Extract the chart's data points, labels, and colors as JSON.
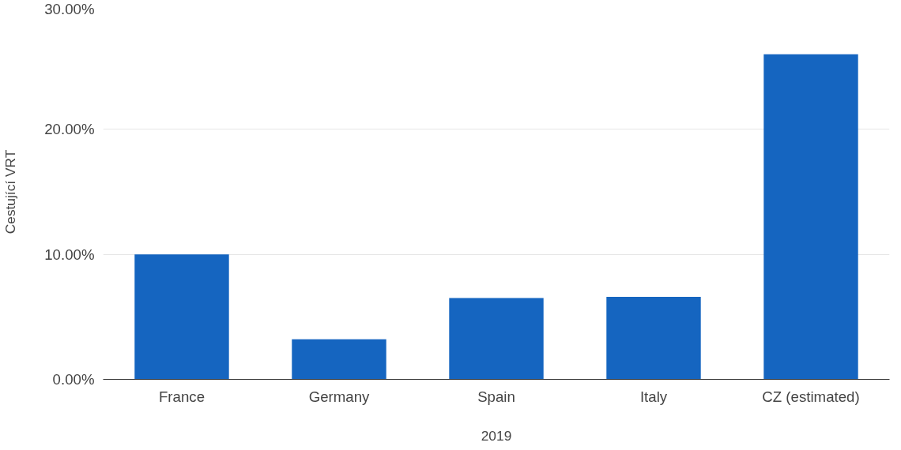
{
  "chart_data": {
    "type": "bar",
    "categories": [
      "France",
      "Germany",
      "Spain",
      "Italy",
      "CZ (estimated)"
    ],
    "values": [
      10.0,
      3.2,
      6.5,
      6.6,
      26.0
    ],
    "color": "#1565c0",
    "xlabel": "2019",
    "ylabel": "Cestující VRT",
    "ylim": [
      0,
      30
    ],
    "yticks": [
      {
        "value": 0,
        "label": "0.00%"
      },
      {
        "value": 10,
        "label": "10.00%"
      },
      {
        "value": 20,
        "label": "20.00%"
      },
      {
        "value": 30,
        "label": "30.00%"
      }
    ],
    "grid": "y"
  }
}
